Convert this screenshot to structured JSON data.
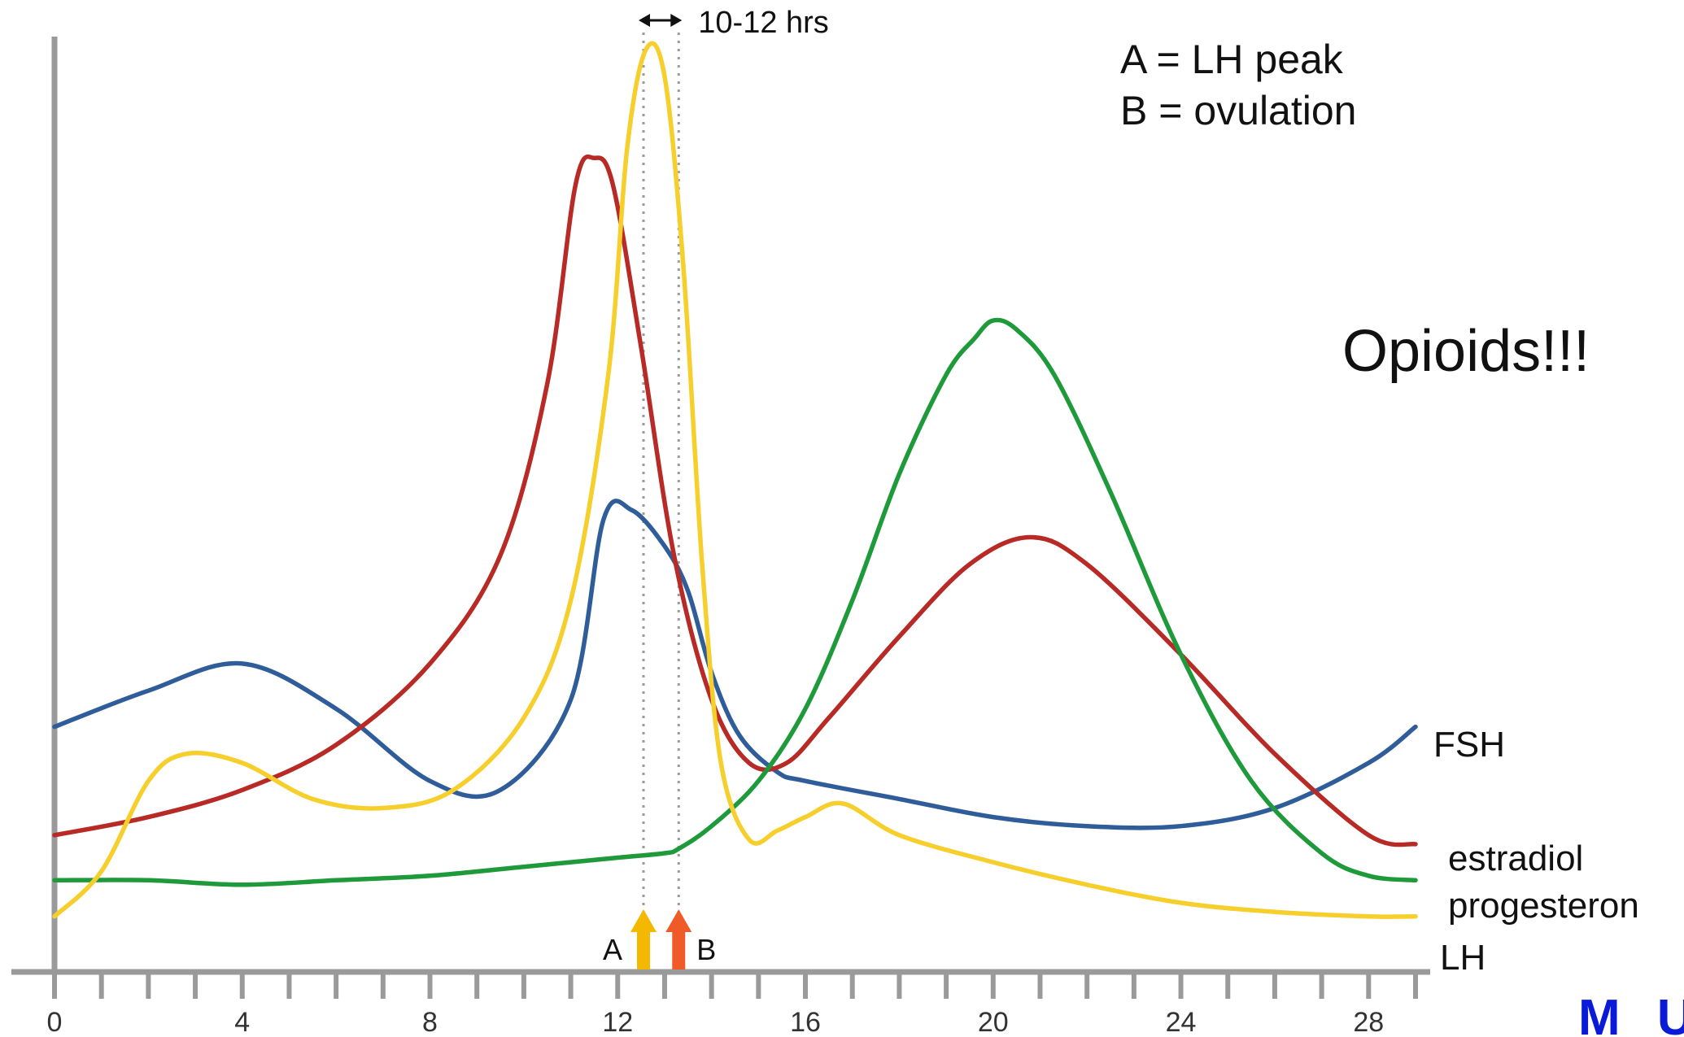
{
  "chart_data": {
    "type": "line",
    "title": "",
    "xlabel": "",
    "ylabel": "",
    "xlim": [
      0,
      29
    ],
    "x_ticks": [
      "0",
      "4",
      "8",
      "12",
      "16",
      "20",
      "24",
      "28"
    ],
    "grid": false,
    "series": [
      {
        "name": "FSH",
        "color": "#2f5d9a",
        "points": [
          [
            0,
            0.24
          ],
          [
            2,
            0.28
          ],
          [
            4,
            0.31
          ],
          [
            6,
            0.26
          ],
          [
            8,
            0.18
          ],
          [
            9.5,
            0.17
          ],
          [
            11,
            0.27
          ],
          [
            11.7,
            0.47
          ],
          [
            12.3,
            0.48
          ],
          [
            13,
            0.44
          ],
          [
            13.5,
            0.39
          ],
          [
            14,
            0.3
          ],
          [
            14.6,
            0.23
          ],
          [
            15.4,
            0.19
          ],
          [
            16,
            0.18
          ],
          [
            18,
            0.16
          ],
          [
            20,
            0.14
          ],
          [
            22,
            0.13
          ],
          [
            24,
            0.13
          ],
          [
            26,
            0.15
          ],
          [
            28,
            0.2
          ],
          [
            29,
            0.24
          ]
        ]
      },
      {
        "name": "estradiol",
        "color": "#b82a26",
        "points": [
          [
            0,
            0.12
          ],
          [
            2,
            0.14
          ],
          [
            4,
            0.17
          ],
          [
            6,
            0.22
          ],
          [
            8,
            0.31
          ],
          [
            9.5,
            0.43
          ],
          [
            10.5,
            0.62
          ],
          [
            11.1,
            0.84
          ],
          [
            11.5,
            0.87
          ],
          [
            11.9,
            0.84
          ],
          [
            12.5,
            0.66
          ],
          [
            13.2,
            0.43
          ],
          [
            14,
            0.27
          ],
          [
            14.8,
            0.2
          ],
          [
            15.6,
            0.2
          ],
          [
            16.5,
            0.25
          ],
          [
            18,
            0.34
          ],
          [
            19.5,
            0.42
          ],
          [
            20.8,
            0.45
          ],
          [
            22,
            0.42
          ],
          [
            24,
            0.32
          ],
          [
            26,
            0.21
          ],
          [
            28,
            0.12
          ],
          [
            29,
            0.11
          ]
        ]
      },
      {
        "name": "progesteron",
        "color": "#1f9a3b",
        "points": [
          [
            0,
            0.07
          ],
          [
            2,
            0.07
          ],
          [
            4,
            0.065
          ],
          [
            6,
            0.07
          ],
          [
            8,
            0.075
          ],
          [
            10,
            0.085
          ],
          [
            11,
            0.09
          ],
          [
            12,
            0.095
          ],
          [
            13,
            0.1
          ],
          [
            13.3,
            0.105
          ],
          [
            14,
            0.13
          ],
          [
            15,
            0.18
          ],
          [
            16,
            0.26
          ],
          [
            17,
            0.38
          ],
          [
            18,
            0.52
          ],
          [
            19,
            0.63
          ],
          [
            19.6,
            0.67
          ],
          [
            20,
            0.69
          ],
          [
            20.5,
            0.68
          ],
          [
            21.3,
            0.63
          ],
          [
            22.5,
            0.5
          ],
          [
            24,
            0.32
          ],
          [
            25.5,
            0.18
          ],
          [
            27,
            0.1
          ],
          [
            28,
            0.075
          ],
          [
            29,
            0.07
          ]
        ]
      },
      {
        "name": "LH",
        "color": "#f6cf2c",
        "points": [
          [
            0,
            0.03
          ],
          [
            1,
            0.08
          ],
          [
            2,
            0.18
          ],
          [
            2.8,
            0.21
          ],
          [
            4,
            0.2
          ],
          [
            5.5,
            0.16
          ],
          [
            7,
            0.15
          ],
          [
            8.5,
            0.17
          ],
          [
            10,
            0.25
          ],
          [
            11,
            0.38
          ],
          [
            11.8,
            0.63
          ],
          [
            12.2,
            0.88
          ],
          [
            12.6,
            0.99
          ],
          [
            13.0,
            0.96
          ],
          [
            13.4,
            0.75
          ],
          [
            13.8,
            0.42
          ],
          [
            14.2,
            0.2
          ],
          [
            14.8,
            0.115
          ],
          [
            15.4,
            0.125
          ],
          [
            16,
            0.14
          ],
          [
            16.8,
            0.155
          ],
          [
            18,
            0.12
          ],
          [
            20,
            0.09
          ],
          [
            22,
            0.065
          ],
          [
            24,
            0.045
          ],
          [
            26,
            0.035
          ],
          [
            28,
            0.03
          ],
          [
            29,
            0.03
          ]
        ]
      }
    ],
    "markers": [
      {
        "label": "A",
        "x": 12.55,
        "color": "#f5b800"
      },
      {
        "label": "B",
        "x": 13.3,
        "color": "#f05a28"
      }
    ],
    "interval_annotation": "10-12 hrs"
  },
  "legend": {
    "line_a": "A = LH peak",
    "line_b": "B = ovulation"
  },
  "headline": "Opioids!!!",
  "logo_text": "M U N"
}
